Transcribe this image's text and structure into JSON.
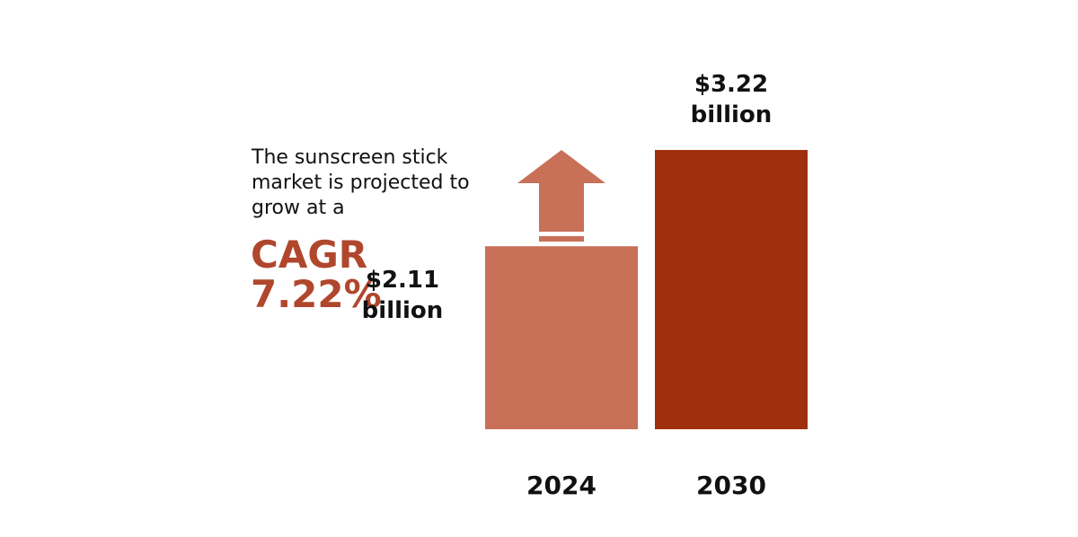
{
  "description": "The sunscreen stick market is projected to grow at a",
  "cagr_label": "CAGR",
  "cagr_value": "7.22%",
  "colors": {
    "bar_2024": "#c87058",
    "bar_2030": "#a0300d",
    "arrow": "#c87058",
    "cagr_text": "#b0472d",
    "text": "#111111"
  },
  "chart_data": {
    "type": "bar",
    "categories": [
      "2024",
      "2030"
    ],
    "values": [
      2.11,
      3.22
    ],
    "value_labels": [
      {
        "amount": "$2.11",
        "unit": "billion"
      },
      {
        "amount": "$3.22",
        "unit": "billion"
      }
    ],
    "title": "",
    "xlabel": "",
    "ylabel": "",
    "grid": false
  }
}
